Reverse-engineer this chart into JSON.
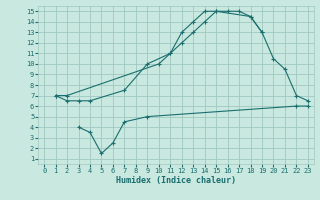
{
  "xlabel": "Humidex (Indice chaleur)",
  "bg_color": "#c8e8e0",
  "grid_color": "#a0c8c0",
  "line_color": "#1a6e6e",
  "xlim": [
    -0.5,
    23.5
  ],
  "ylim": [
    0.5,
    15.5
  ],
  "xticks": [
    0,
    1,
    2,
    3,
    4,
    5,
    6,
    7,
    8,
    9,
    10,
    11,
    12,
    13,
    14,
    15,
    16,
    17,
    18,
    19,
    20,
    21,
    22,
    23
  ],
  "yticks": [
    1,
    2,
    3,
    4,
    5,
    6,
    7,
    8,
    9,
    10,
    11,
    12,
    13,
    14,
    15
  ],
  "line1_x": [
    1,
    2,
    10,
    11,
    12,
    13,
    14,
    15,
    16,
    17,
    18,
    19,
    20,
    21,
    22,
    23
  ],
  "line1_y": [
    7,
    7,
    10,
    11,
    12,
    13,
    14,
    15,
    15,
    15,
    14.5,
    13,
    10.5,
    9.5,
    7,
    6.5
  ],
  "line2_x": [
    1,
    2,
    3,
    4,
    7,
    9,
    11,
    12,
    13,
    14,
    15,
    18,
    19
  ],
  "line2_y": [
    7,
    6.5,
    6.5,
    6.5,
    7.5,
    10,
    11,
    13,
    14,
    15,
    15,
    14.5,
    13
  ],
  "line3_x": [
    3,
    4,
    5,
    6,
    7,
    9,
    22,
    23
  ],
  "line3_y": [
    4,
    3.5,
    1.5,
    2.5,
    4.5,
    5,
    6,
    6
  ],
  "xlabel_fontsize": 6,
  "tick_fontsize": 5
}
